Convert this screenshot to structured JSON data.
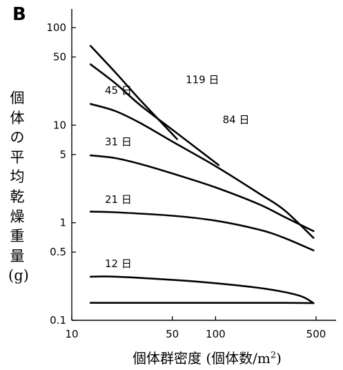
{
  "panel_label": "B",
  "chart_data": {
    "type": "line",
    "xscale": "log",
    "yscale": "log",
    "xlim": [
      10,
      500
    ],
    "ylim": [
      0.1,
      100
    ],
    "xticks": [
      10,
      50,
      100,
      500
    ],
    "yticks": [
      0.1,
      0.5,
      1,
      5,
      10,
      50,
      100
    ],
    "xtick_labels": [
      "10",
      "50",
      "100",
      "500"
    ],
    "ytick_labels": [
      "0.1",
      "0.5",
      "1",
      "5",
      "10",
      "50",
      "100"
    ],
    "xlabel": {
      "main": "個体群密度 (個体数/m",
      "sup": "2",
      "end": ")"
    },
    "ylabel": "個体の平均乾燥重量(g)",
    "series": [
      {
        "name": "119 日",
        "points": [
          [
            13.5,
            65
          ],
          [
            20,
            35
          ],
          [
            30,
            18
          ],
          [
            40,
            11.5
          ],
          [
            54,
            7.2
          ]
        ]
      },
      {
        "name": "84 日",
        "points": [
          [
            13.5,
            42
          ],
          [
            20,
            27
          ],
          [
            30,
            16
          ],
          [
            50,
            9
          ],
          [
            80,
            5.3
          ],
          [
            105,
            3.9
          ]
        ]
      },
      {
        "name": "45 日",
        "points": [
          [
            13.5,
            16.5
          ],
          [
            20,
            14
          ],
          [
            30,
            10.5
          ],
          [
            50,
            6.8
          ],
          [
            100,
            3.8
          ],
          [
            200,
            2
          ],
          [
            300,
            1.35
          ],
          [
            480,
            0.7
          ]
        ]
      },
      {
        "name": "31 日",
        "points": [
          [
            13.5,
            4.9
          ],
          [
            20,
            4.6
          ],
          [
            30,
            4
          ],
          [
            50,
            3.2
          ],
          [
            100,
            2.3
          ],
          [
            200,
            1.55
          ],
          [
            300,
            1.15
          ],
          [
            480,
            0.82
          ]
        ]
      },
      {
        "name": "21 日",
        "points": [
          [
            13.5,
            1.3
          ],
          [
            20,
            1.28
          ],
          [
            50,
            1.18
          ],
          [
            100,
            1.05
          ],
          [
            200,
            0.85
          ],
          [
            300,
            0.7
          ],
          [
            480,
            0.52
          ]
        ]
      },
      {
        "name": "12 日",
        "points": [
          [
            13.5,
            0.28
          ],
          [
            20,
            0.28
          ],
          [
            50,
            0.26
          ],
          [
            100,
            0.24
          ],
          [
            200,
            0.215
          ],
          [
            300,
            0.195
          ],
          [
            400,
            0.175
          ],
          [
            480,
            0.15
          ]
        ]
      },
      {
        "name": "",
        "points": [
          [
            13.5,
            0.151
          ],
          [
            100,
            0.151
          ],
          [
            300,
            0.151
          ],
          [
            480,
            0.15
          ]
        ]
      }
    ],
    "annotations": [
      {
        "text": "119 日",
        "x": 62,
        "y": 27
      },
      {
        "text": "84 日",
        "x": 112,
        "y": 10.5
      },
      {
        "text": "45 日",
        "x": 17,
        "y": 21
      },
      {
        "text": "31 日",
        "x": 17,
        "y": 6.2
      },
      {
        "text": "21 日",
        "x": 17,
        "y": 1.6
      },
      {
        "text": "12 日",
        "x": 17,
        "y": 0.35
      }
    ]
  }
}
